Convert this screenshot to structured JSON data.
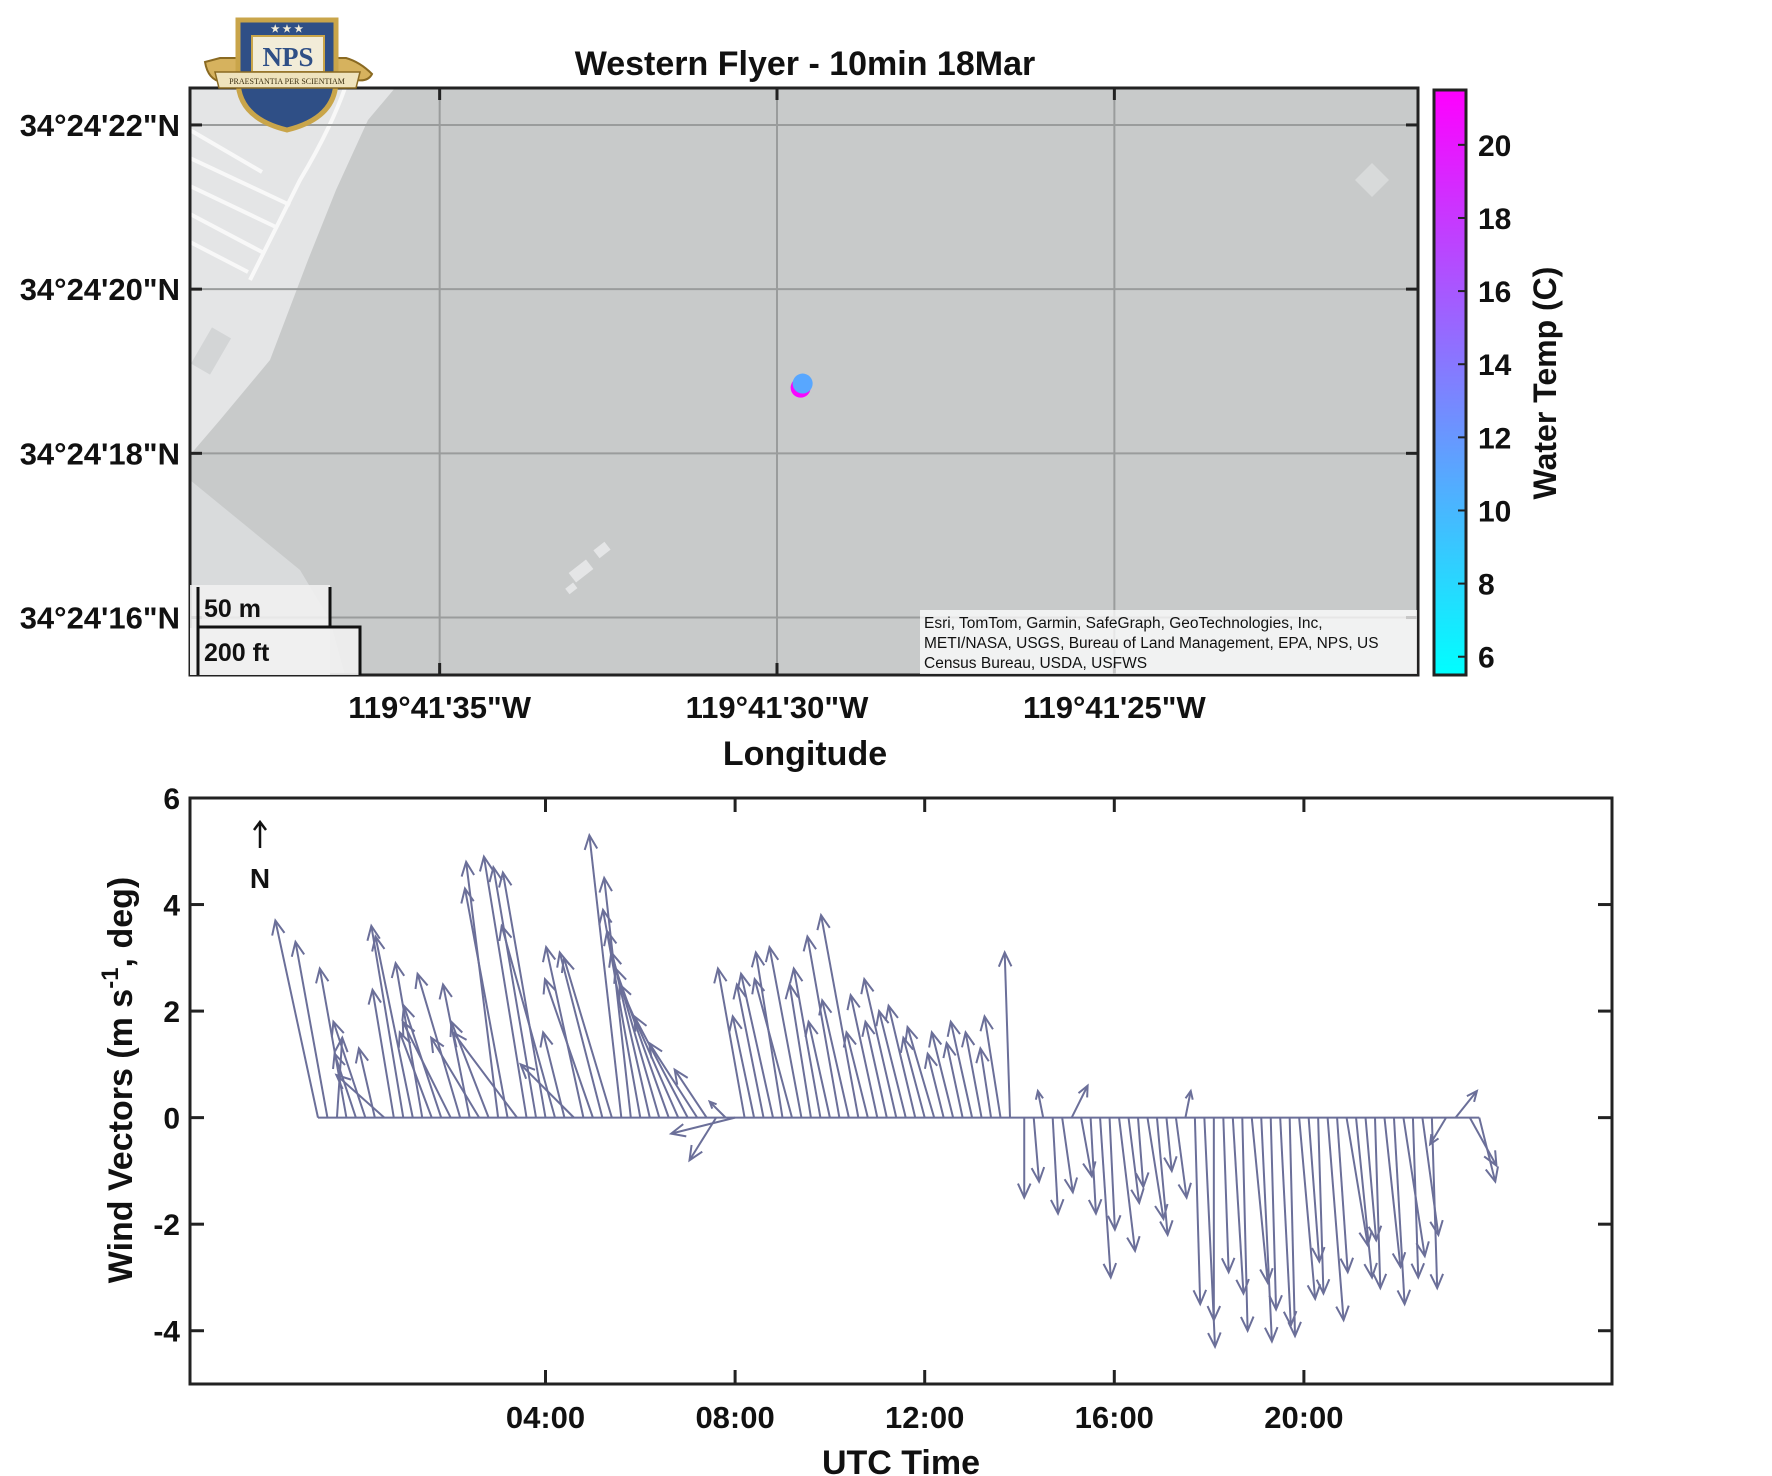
{
  "chart_data": [
    {
      "type": "scatter",
      "title": "Western Flyer - 10min 18Mar",
      "xlabel": "Longitude",
      "ylabel": "",
      "x_ticks": [
        "119°41'35\"W",
        "119°41'30\"W",
        "119°41'25\"W"
      ],
      "y_ticks": [
        "34°24'22\"N",
        "34°24'20\"N",
        "34°24'18\"N",
        "34°24'16\"N"
      ],
      "x_tick_seconds": [
        35,
        30,
        25
      ],
      "y_tick_seconds": [
        22,
        20,
        18,
        16
      ],
      "xlim_seconds": [
        38.7,
        20.5
      ],
      "ylim_seconds": [
        22.45,
        15.3
      ],
      "points": [
        {
          "lon_seconds": 29.65,
          "lat_seconds": 18.8,
          "temp": 21
        },
        {
          "lon_seconds": 29.62,
          "lat_seconds": 18.85,
          "temp": 11
        }
      ],
      "colorbar": {
        "label": "Water Temp (C)",
        "ticks": [
          6,
          8,
          10,
          12,
          14,
          16,
          18,
          20
        ],
        "range": [
          5.5,
          21.5
        ],
        "colors": [
          "#00ffff",
          "#ff00ff"
        ]
      },
      "scale_bar": {
        "metric": "50 m",
        "imperial": "200 ft"
      },
      "attribution": [
        "Esri, TomTom, Garmin, SafeGraph, GeoTechnologies, Inc,",
        "METI/NASA, USGS, Bureau of Land Management, EPA, NPS, US",
        "Census Bureau, USDA, USFWS"
      ],
      "logo": {
        "text": "NPS",
        "motto": "PRAESTANTIA PER SCIENTIAM"
      },
      "grid": true,
      "colors": {
        "land": "#e4e5e6",
        "water": "#c8caca",
        "grid": "#9a9c9c"
      }
    },
    {
      "type": "quiver",
      "xlabel": "UTC Time",
      "ylabel": "Wind Vectors (m s-1, deg)",
      "ylim": [
        -5,
        6
      ],
      "y_ticks": [
        -4,
        -2,
        0,
        2,
        4,
        6
      ],
      "xlim_hours": [
        -3.5,
        26.5
      ],
      "x_ticks": [
        "04:00",
        "08:00",
        "12:00",
        "16:00",
        "20:00"
      ],
      "x_tick_hours": [
        4,
        8,
        12,
        16,
        20
      ],
      "north_label": "N",
      "vector_color": "#6b6f99",
      "vectors": [
        [
          -0.8,
          -0.8,
          3.7
        ],
        [
          -0.6,
          -0.6,
          3.3
        ],
        [
          -0.4,
          0.1,
          1.5
        ],
        [
          -0.2,
          -0.5,
          2.8
        ],
        [
          0.0,
          -0.4,
          1.2
        ],
        [
          0.2,
          -0.6,
          1.8
        ],
        [
          0.4,
          -0.3,
          1.3
        ],
        [
          0.6,
          -0.9,
          0.8
        ],
        [
          0.8,
          -0.4,
          2.4
        ],
        [
          1.0,
          -0.6,
          3.6
        ],
        [
          1.2,
          -0.7,
          3.4
        ],
        [
          1.4,
          -0.5,
          2.9
        ],
        [
          1.6,
          -0.6,
          1.6
        ],
        [
          1.8,
          -0.7,
          2.1
        ],
        [
          2.0,
          -0.9,
          1.8
        ],
        [
          2.2,
          -0.8,
          2.7
        ],
        [
          2.4,
          -0.5,
          2.5
        ],
        [
          2.6,
          -0.9,
          1.5
        ],
        [
          2.8,
          -0.7,
          1.8
        ],
        [
          3.0,
          -0.6,
          4.8
        ],
        [
          3.2,
          -0.8,
          4.3
        ],
        [
          3.4,
          -1.2,
          1.6
        ],
        [
          3.6,
          -0.8,
          4.9
        ],
        [
          3.8,
          -0.8,
          4.7
        ],
        [
          4.0,
          -0.8,
          4.6
        ],
        [
          4.2,
          -1.0,
          3.6
        ],
        [
          4.4,
          -0.4,
          1.6
        ],
        [
          4.6,
          -1.0,
          1.0
        ],
        [
          4.8,
          -0.7,
          3.2
        ],
        [
          5.0,
          -0.9,
          2.6
        ],
        [
          5.2,
          -0.8,
          3.1
        ],
        [
          5.4,
          -0.9,
          3.0
        ],
        [
          5.6,
          -0.6,
          5.3
        ],
        [
          5.8,
          -0.5,
          4.5
        ],
        [
          6.0,
          -0.7,
          3.9
        ],
        [
          6.2,
          -0.8,
          3.5
        ],
        [
          6.4,
          -0.9,
          3.1
        ],
        [
          6.6,
          -1.0,
          2.8
        ],
        [
          6.8,
          -1.1,
          2.5
        ],
        [
          7.0,
          -1.0,
          1.9
        ],
        [
          7.2,
          -0.9,
          1.4
        ],
        [
          7.4,
          -0.6,
          0.9
        ],
        [
          7.6,
          -0.5,
          -0.8
        ],
        [
          7.8,
          -0.3,
          0.3
        ],
        [
          8.0,
          -1.2,
          -0.3
        ],
        [
          8.2,
          -0.5,
          2.8
        ],
        [
          8.4,
          -0.4,
          1.9
        ],
        [
          8.6,
          -0.5,
          2.5
        ],
        [
          8.8,
          -0.6,
          2.7
        ],
        [
          9.0,
          -0.5,
          3.1
        ],
        [
          9.2,
          -0.7,
          2.6
        ],
        [
          9.4,
          -0.6,
          3.2
        ],
        [
          9.6,
          -0.4,
          2.5
        ],
        [
          9.8,
          -0.5,
          2.8
        ],
        [
          10.0,
          -0.4,
          1.8
        ],
        [
          10.2,
          -0.6,
          3.4
        ],
        [
          10.4,
          -0.5,
          2.2
        ],
        [
          10.6,
          -0.7,
          3.8
        ],
        [
          10.8,
          -0.4,
          1.6
        ],
        [
          11.0,
          -0.5,
          2.3
        ],
        [
          11.2,
          -0.4,
          1.8
        ],
        [
          11.4,
          -0.6,
          2.6
        ],
        [
          11.6,
          -0.5,
          2.0
        ],
        [
          11.8,
          -0.5,
          2.1
        ],
        [
          12.0,
          -0.4,
          1.5
        ],
        [
          12.2,
          -0.5,
          1.7
        ],
        [
          12.4,
          -0.3,
          1.2
        ],
        [
          12.6,
          -0.4,
          1.6
        ],
        [
          12.8,
          -0.3,
          1.4
        ],
        [
          13.0,
          -0.4,
          1.8
        ],
        [
          13.2,
          -0.3,
          1.6
        ],
        [
          13.4,
          -0.2,
          1.3
        ],
        [
          13.6,
          -0.3,
          1.9
        ],
        [
          13.8,
          -0.1,
          3.1
        ],
        [
          14.1,
          0.0,
          -1.5
        ],
        [
          14.3,
          0.1,
          -1.2
        ],
        [
          14.5,
          -0.1,
          0.5
        ],
        [
          14.7,
          0.1,
          -1.8
        ],
        [
          14.9,
          0.2,
          -1.4
        ],
        [
          15.1,
          0.3,
          0.6
        ],
        [
          15.3,
          0.2,
          -1.1
        ],
        [
          15.5,
          0.1,
          -1.8
        ],
        [
          15.7,
          0.2,
          -3.0
        ],
        [
          15.9,
          0.1,
          -2.1
        ],
        [
          16.1,
          0.3,
          -2.5
        ],
        [
          16.3,
          0.2,
          -1.6
        ],
        [
          16.5,
          0.1,
          -1.3
        ],
        [
          16.7,
          0.3,
          -1.9
        ],
        [
          16.9,
          0.2,
          -2.2
        ],
        [
          17.1,
          0.1,
          -1.0
        ],
        [
          17.3,
          0.2,
          -1.5
        ],
        [
          17.5,
          0.1,
          0.5
        ],
        [
          17.7,
          0.1,
          -3.5
        ],
        [
          17.9,
          0.2,
          -4.3
        ],
        [
          18.1,
          0.0,
          -3.8
        ],
        [
          18.3,
          0.1,
          -2.9
        ],
        [
          18.5,
          0.2,
          -3.3
        ],
        [
          18.7,
          0.1,
          -4.0
        ],
        [
          18.9,
          0.3,
          -3.1
        ],
        [
          19.1,
          0.2,
          -4.2
        ],
        [
          19.3,
          0.1,
          -3.6
        ],
        [
          19.5,
          0.2,
          -3.9
        ],
        [
          19.7,
          0.1,
          -4.1
        ],
        [
          19.9,
          0.3,
          -3.4
        ],
        [
          20.1,
          0.2,
          -2.7
        ],
        [
          20.3,
          0.1,
          -3.3
        ],
        [
          20.5,
          0.3,
          -3.8
        ],
        [
          20.7,
          0.2,
          -2.9
        ],
        [
          20.9,
          0.4,
          -2.4
        ],
        [
          21.1,
          0.3,
          -3.0
        ],
        [
          21.3,
          0.2,
          -2.3
        ],
        [
          21.5,
          0.1,
          -3.2
        ],
        [
          21.7,
          0.3,
          -2.8
        ],
        [
          21.9,
          0.2,
          -3.5
        ],
        [
          22.1,
          0.4,
          -2.6
        ],
        [
          22.3,
          0.1,
          -3.0
        ],
        [
          22.5,
          0.3,
          -2.2
        ],
        [
          22.7,
          0.1,
          -3.2
        ],
        [
          23.0,
          -0.3,
          -0.5
        ],
        [
          23.2,
          0.4,
          0.5
        ],
        [
          23.5,
          0.5,
          -0.9
        ],
        [
          23.7,
          0.3,
          -1.2
        ]
      ]
    }
  ]
}
